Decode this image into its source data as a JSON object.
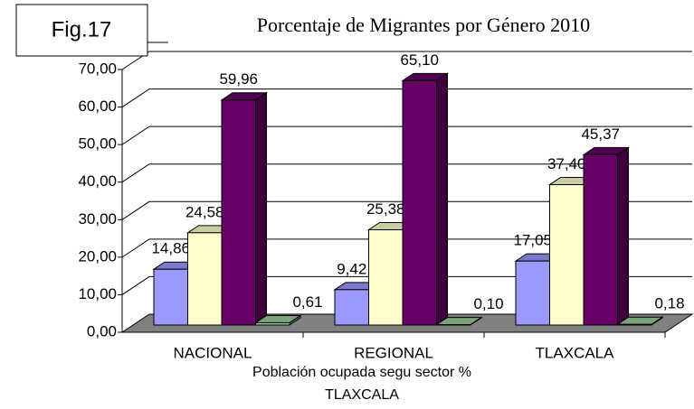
{
  "chart_data": {
    "type": "bar3d",
    "figure_label": "Fig.17",
    "title": "Porcentaje de Migrantes por Género 2010",
    "x_label": [
      "Población ocupada segu sector %",
      "TLAXCALA"
    ],
    "categories": [
      "NACIONAL",
      "REGIONAL",
      "TLAXCALA"
    ],
    "series": [
      {
        "color": "#9999ff",
        "values": [
          14.86,
          9.42,
          17.05
        ],
        "value_labels": [
          "14,86",
          "9,42",
          "17,05"
        ]
      },
      {
        "color": "#ffffcc",
        "values": [
          24.58,
          25.38,
          37.4
        ],
        "value_labels": [
          "24,58",
          "25,38",
          "37,40"
        ]
      },
      {
        "color": "#660066",
        "values": [
          59.96,
          65.1,
          45.37
        ],
        "value_labels": [
          "59,96",
          "65,10",
          "45,37"
        ]
      },
      {
        "color": "#99cc99",
        "values": [
          0.61,
          0.1,
          0.18
        ],
        "value_labels": [
          "0,61",
          "0,10",
          "0,18"
        ]
      }
    ],
    "ylim": [
      0,
      70
    ],
    "yticks": [
      {
        "value": 0,
        "label": "0,00"
      },
      {
        "value": 10,
        "label": "10,00"
      },
      {
        "value": 20,
        "label": "20,00"
      },
      {
        "value": 30,
        "label": "30,00"
      },
      {
        "value": 40,
        "label": "40,00"
      },
      {
        "value": 50,
        "label": "50,00"
      },
      {
        "value": 60,
        "label": "60,00"
      },
      {
        "value": 70,
        "label": "70,00"
      }
    ],
    "grid": true,
    "floor_color": "#808080"
  }
}
